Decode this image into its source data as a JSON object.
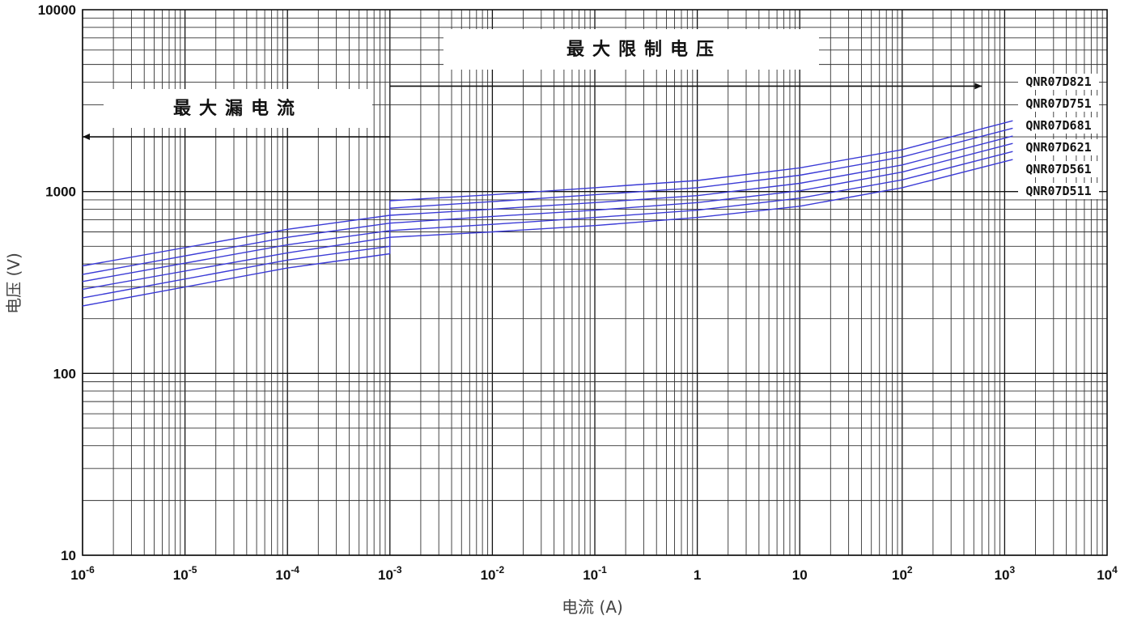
{
  "chart_data": {
    "type": "line",
    "xscale": "log",
    "yscale": "log",
    "xlim": [
      1e-06,
      10000
    ],
    "ylim": [
      10,
      10000
    ],
    "xlabel": "电流 (A)",
    "ylabel": "电压 (V)",
    "x_ticks": [
      {
        "value": 1e-06,
        "base": "10",
        "exp": "-6"
      },
      {
        "value": 1e-05,
        "base": "10",
        "exp": "-5"
      },
      {
        "value": 0.0001,
        "base": "10",
        "exp": "-4"
      },
      {
        "value": 0.001,
        "base": "10",
        "exp": "-3"
      },
      {
        "value": 0.01,
        "base": "10",
        "exp": "-2"
      },
      {
        "value": 0.1,
        "base": "10",
        "exp": "-1"
      },
      {
        "value": 1,
        "base": "1",
        "exp": ""
      },
      {
        "value": 10,
        "base": "10",
        "exp": ""
      },
      {
        "value": 100,
        "base": "10",
        "exp": "2"
      },
      {
        "value": 1000,
        "base": "10",
        "exp": "3"
      },
      {
        "value": 10000,
        "base": "10",
        "exp": "4"
      }
    ],
    "y_ticks": [
      {
        "value": 10,
        "label": "10"
      },
      {
        "value": 100,
        "label": "100"
      },
      {
        "value": 1000,
        "label": "1000"
      },
      {
        "value": 10000,
        "label": "10000"
      }
    ],
    "annotations": {
      "leakage_label": "最大漏电流",
      "leakage_arrow": {
        "from_x": 0.001,
        "to_x": 1e-06,
        "y": 2000
      },
      "clamp_label": "最大限制电压",
      "clamp_arrow": {
        "from_x": 0.001,
        "to_x": 600,
        "y": 3800
      }
    },
    "series": [
      {
        "name": "QNR07D821",
        "leakage": [
          [
            1e-06,
            390
          ],
          [
            0.0001,
            620
          ],
          [
            0.001,
            740
          ]
        ],
        "clamp": [
          [
            0.001,
            890
          ],
          [
            0.01,
            960
          ],
          [
            0.1,
            1050
          ],
          [
            1,
            1150
          ],
          [
            10,
            1350
          ],
          [
            100,
            1700
          ],
          [
            1200,
            2450
          ]
        ]
      },
      {
        "name": "QNR07D751",
        "leakage": [
          [
            1e-06,
            350
          ],
          [
            0.0001,
            560
          ],
          [
            0.001,
            670
          ]
        ],
        "clamp": [
          [
            0.001,
            810
          ],
          [
            0.01,
            880
          ],
          [
            0.1,
            960
          ],
          [
            1,
            1050
          ],
          [
            10,
            1230
          ],
          [
            100,
            1550
          ],
          [
            1200,
            2230
          ]
        ]
      },
      {
        "name": "QNR07D681",
        "leakage": [
          [
            1e-06,
            320
          ],
          [
            0.0001,
            510
          ],
          [
            0.001,
            610
          ]
        ],
        "clamp": [
          [
            0.001,
            740
          ],
          [
            0.01,
            800
          ],
          [
            0.1,
            870
          ],
          [
            1,
            950
          ],
          [
            10,
            1110
          ],
          [
            100,
            1400
          ],
          [
            1200,
            2020
          ]
        ]
      },
      {
        "name": "QNR07D621",
        "leakage": [
          [
            1e-06,
            290
          ],
          [
            0.0001,
            460
          ],
          [
            0.001,
            560
          ]
        ],
        "clamp": [
          [
            0.001,
            670
          ],
          [
            0.01,
            730
          ],
          [
            0.1,
            790
          ],
          [
            1,
            870
          ],
          [
            10,
            1010
          ],
          [
            100,
            1280
          ],
          [
            1200,
            1840
          ]
        ]
      },
      {
        "name": "QNR07D561",
        "leakage": [
          [
            1e-06,
            260
          ],
          [
            0.0001,
            420
          ],
          [
            0.001,
            500
          ]
        ],
        "clamp": [
          [
            0.001,
            610
          ],
          [
            0.01,
            660
          ],
          [
            0.1,
            720
          ],
          [
            1,
            790
          ],
          [
            10,
            920
          ],
          [
            100,
            1160
          ],
          [
            1200,
            1660
          ]
        ]
      },
      {
        "name": "QNR07D511",
        "leakage": [
          [
            1e-06,
            235
          ],
          [
            0.0001,
            380
          ],
          [
            0.001,
            455
          ]
        ],
        "clamp": [
          [
            0.001,
            560
          ],
          [
            0.01,
            600
          ],
          [
            0.1,
            650
          ],
          [
            1,
            720
          ],
          [
            10,
            830
          ],
          [
            100,
            1050
          ],
          [
            1200,
            1500
          ]
        ]
      }
    ],
    "line_color": "#3b3bd6",
    "grid": true
  }
}
